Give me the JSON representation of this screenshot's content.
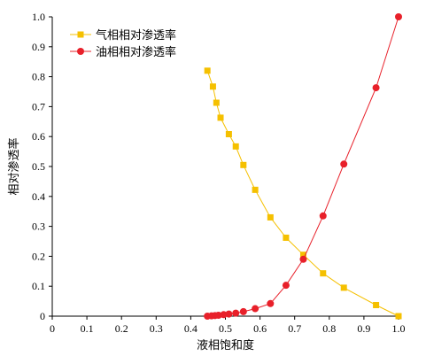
{
  "chart_data": {
    "type": "scatter",
    "title": "",
    "xlabel": "液相饱和度",
    "ylabel": "相对渗透率",
    "xlim": [
      0,
      1.0
    ],
    "ylim": [
      0,
      1.0
    ],
    "x_ticks": [
      "0",
      "0.1",
      "0.2",
      "0.3",
      "0.4",
      "0.5",
      "0.6",
      "0.7",
      "0.8",
      "0.9",
      "1.0"
    ],
    "y_ticks": [
      "0",
      "0.1",
      "0.2",
      "0.3",
      "0.4",
      "0.5",
      "0.6",
      "0.7",
      "0.8",
      "0.9",
      "1.0"
    ],
    "grid": false,
    "legend_position": "top-left",
    "series": [
      {
        "name": "气相相对渗透率",
        "color": "#F5C000",
        "marker": "square",
        "x": [
          0.448,
          0.464,
          0.474,
          0.486,
          0.51,
          0.53,
          0.552,
          0.586,
          0.63,
          0.675,
          0.725,
          0.782,
          0.842,
          0.935,
          1.0
        ],
        "y": [
          0.82,
          0.767,
          0.713,
          0.663,
          0.608,
          0.567,
          0.505,
          0.422,
          0.33,
          0.262,
          0.205,
          0.143,
          0.095,
          0.037,
          0.0
        ]
      },
      {
        "name": "油相相对渗透率",
        "color": "#E8202A",
        "marker": "circle",
        "x": [
          0.448,
          0.46,
          0.47,
          0.48,
          0.495,
          0.51,
          0.53,
          0.552,
          0.586,
          0.63,
          0.675,
          0.725,
          0.782,
          0.842,
          0.935,
          1.0
        ],
        "y": [
          0.0,
          0.001,
          0.002,
          0.003,
          0.005,
          0.007,
          0.01,
          0.015,
          0.025,
          0.042,
          0.103,
          0.19,
          0.335,
          0.508,
          0.763,
          1.0
        ]
      }
    ]
  }
}
